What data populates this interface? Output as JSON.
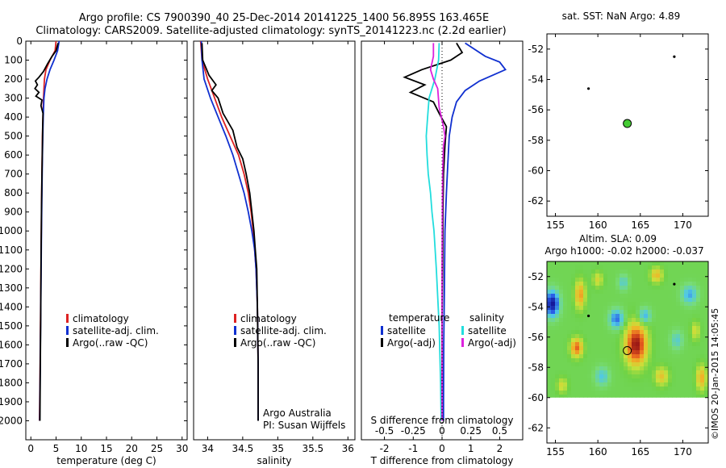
{
  "header": {
    "line1": "Argo profile: CS 7900390_40 25-Dec-2014 20141225_1400 56.895S 163.465E",
    "line2": "Climatology: CARS2009. Satellite-adjusted climatology: synTS_20141223.nc (2.2d earlier)"
  },
  "credits": {
    "org": "Argo Australia",
    "pi": "PI: Susan Wijffels",
    "stamp": "©IMOS 20-Jan-2015 14:05:45"
  },
  "colors": {
    "climatology": "#dd2222",
    "satellite": "#1030d0",
    "argo": "#000000",
    "sal_satellite": "#22dddd",
    "sal_argo": "#dd22dd",
    "float_marker": "#44cc33"
  },
  "chart_data": [
    {
      "type": "line",
      "id": "temperature",
      "xlabel": "temperature (deg C)",
      "ylabel": "",
      "xlim": [
        -1,
        31
      ],
      "ylim": [
        2100,
        0
      ],
      "xticks": [
        0,
        5,
        10,
        15,
        20,
        25,
        30
      ],
      "yticks": [
        0,
        100,
        200,
        300,
        400,
        500,
        600,
        700,
        800,
        900,
        1000,
        1100,
        1200,
        1300,
        1400,
        1500,
        1600,
        1700,
        1800,
        1900,
        2000
      ],
      "legend": [
        "climatology",
        "satellite-adj. clim.",
        "Argo(..raw -QC)"
      ],
      "series": [
        {
          "name": "climatology",
          "color": "#dd2222",
          "points": [
            [
              5.0,
              0
            ],
            [
              4.8,
              50
            ],
            [
              3.8,
              100
            ],
            [
              3.0,
              150
            ],
            [
              2.7,
              200
            ],
            [
              2.5,
              300
            ],
            [
              2.4,
              400
            ],
            [
              2.3,
              500
            ],
            [
              2.2,
              700
            ],
            [
              2.1,
              900
            ],
            [
              2.0,
              1200
            ],
            [
              1.9,
              1500
            ],
            [
              1.8,
              1800
            ],
            [
              1.7,
              2000
            ]
          ]
        },
        {
          "name": "satellite-adj. clim.",
          "color": "#1030d0",
          "points": [
            [
              5.6,
              0
            ],
            [
              5.3,
              50
            ],
            [
              4.6,
              100
            ],
            [
              3.8,
              150
            ],
            [
              3.2,
              200
            ],
            [
              2.8,
              250
            ],
            [
              2.6,
              300
            ],
            [
              2.45,
              400
            ],
            [
              2.3,
              600
            ],
            [
              2.2,
              800
            ],
            [
              2.1,
              1000
            ],
            [
              2.0,
              1300
            ],
            [
              1.9,
              1600
            ],
            [
              1.8,
              1900
            ],
            [
              1.75,
              2000
            ]
          ]
        },
        {
          "name": "Argo(..raw -QC)",
          "color": "#000000",
          "points": [
            [
              5.4,
              10
            ],
            [
              5.0,
              50
            ],
            [
              4.2,
              80
            ],
            [
              3.3,
              120
            ],
            [
              2.5,
              160
            ],
            [
              1.6,
              190
            ],
            [
              0.9,
              210
            ],
            [
              1.3,
              230
            ],
            [
              0.8,
              250
            ],
            [
              1.6,
              270
            ],
            [
              1.0,
              290
            ],
            [
              2.2,
              310
            ],
            [
              2.0,
              340
            ],
            [
              2.4,
              380
            ],
            [
              2.35,
              450
            ],
            [
              2.3,
              550
            ],
            [
              2.2,
              700
            ],
            [
              2.1,
              900
            ],
            [
              2.0,
              1200
            ],
            [
              1.95,
              1500
            ],
            [
              1.85,
              1800
            ],
            [
              1.8,
              2000
            ]
          ]
        }
      ]
    },
    {
      "type": "line",
      "id": "salinity",
      "xlabel": "salinity",
      "ylabel": "",
      "xlim": [
        33.8,
        36.1
      ],
      "ylim": [
        2100,
        0
      ],
      "xticks": [
        34,
        34.5,
        35,
        35.5,
        36
      ],
      "xticklabels": [
        "34",
        "34.5",
        "35",
        "35.5",
        "36"
      ],
      "legend": [
        "climatology",
        "satellite-adj. clim.",
        "Argo(..raw -QC)"
      ],
      "series": [
        {
          "name": "climatology",
          "color": "#dd2222",
          "points": [
            [
              33.9,
              0
            ],
            [
              33.92,
              100
            ],
            [
              34.0,
              200
            ],
            [
              34.1,
              300
            ],
            [
              34.2,
              400
            ],
            [
              34.32,
              500
            ],
            [
              34.44,
              600
            ],
            [
              34.52,
              700
            ],
            [
              34.58,
              800
            ],
            [
              34.62,
              900
            ],
            [
              34.65,
              1000
            ],
            [
              34.67,
              1100
            ],
            [
              34.69,
              1200
            ],
            [
              34.71,
              1400
            ],
            [
              34.72,
              1700
            ],
            [
              34.72,
              2000
            ]
          ]
        },
        {
          "name": "satellite-adj. clim.",
          "color": "#1030d0",
          "points": [
            [
              33.91,
              0
            ],
            [
              33.92,
              100
            ],
            [
              33.95,
              200
            ],
            [
              34.04,
              300
            ],
            [
              34.15,
              400
            ],
            [
              34.26,
              500
            ],
            [
              34.36,
              600
            ],
            [
              34.44,
              700
            ],
            [
              34.52,
              800
            ],
            [
              34.58,
              900
            ],
            [
              34.63,
              1000
            ],
            [
              34.67,
              1100
            ],
            [
              34.69,
              1200
            ],
            [
              34.71,
              1400
            ],
            [
              34.72,
              1700
            ],
            [
              34.72,
              2000
            ]
          ]
        },
        {
          "name": "Argo(..raw -QC)",
          "color": "#000000",
          "points": [
            [
              33.92,
              10
            ],
            [
              33.93,
              100
            ],
            [
              34.02,
              180
            ],
            [
              34.12,
              230
            ],
            [
              34.06,
              260
            ],
            [
              34.15,
              300
            ],
            [
              34.22,
              380
            ],
            [
              34.36,
              470
            ],
            [
              34.42,
              560
            ],
            [
              34.5,
              620
            ],
            [
              34.55,
              700
            ],
            [
              34.6,
              800
            ],
            [
              34.63,
              900
            ],
            [
              34.66,
              1000
            ],
            [
              34.68,
              1100
            ],
            [
              34.7,
              1200
            ],
            [
              34.71,
              1400
            ],
            [
              34.72,
              1700
            ],
            [
              34.72,
              2000
            ]
          ]
        }
      ]
    },
    {
      "type": "line",
      "id": "difference",
      "xlabel": "T difference from climatology",
      "x2label": "S difference from climatology",
      "ylabel": "",
      "xlim": [
        -2.8,
        2.8
      ],
      "ylim": [
        2100,
        0
      ],
      "xticks": [
        -2,
        -1,
        0,
        1,
        2
      ],
      "x2ticks": [
        -0.5,
        -0.25,
        0,
        0.25,
        0.5
      ],
      "x2ticklabels": [
        "-0.5",
        "-0.25",
        "0",
        "0.25",
        "0.5"
      ],
      "legend_temperature": {
        "title": "temperature",
        "items": [
          "satellite",
          "Argo(-adj)"
        ]
      },
      "legend_salinity": {
        "title": "salinity",
        "items": [
          "satellite",
          "Argo(-adj)"
        ]
      },
      "series": [
        {
          "name": "T satellite",
          "color": "#1030d0",
          "points": [
            [
              0.8,
              10
            ],
            [
              1.5,
              80
            ],
            [
              2.0,
              110
            ],
            [
              2.2,
              150
            ],
            [
              1.3,
              210
            ],
            [
              0.8,
              260
            ],
            [
              0.5,
              320
            ],
            [
              0.35,
              400
            ],
            [
              0.25,
              500
            ],
            [
              0.2,
              650
            ],
            [
              0.15,
              800
            ],
            [
              0.1,
              1000
            ],
            [
              0.08,
              1300
            ],
            [
              0.06,
              1600
            ],
            [
              0.05,
              1900
            ],
            [
              0.05,
              2000
            ]
          ]
        },
        {
          "name": "T Argo(-adj)",
          "color": "#000000",
          "points": [
            [
              0.5,
              10
            ],
            [
              0.7,
              60
            ],
            [
              0.3,
              100
            ],
            [
              -0.7,
              150
            ],
            [
              -1.3,
              190
            ],
            [
              -0.6,
              230
            ],
            [
              -1.1,
              270
            ],
            [
              -0.3,
              320
            ],
            [
              -0.1,
              380
            ],
            [
              0.15,
              450
            ],
            [
              0.1,
              550
            ],
            [
              0.05,
              700
            ],
            [
              0.03,
              900
            ],
            [
              0.02,
              1200
            ],
            [
              0.0,
              1500
            ],
            [
              0.0,
              1800
            ],
            [
              0.0,
              2000
            ]
          ]
        },
        {
          "name": "S satellite",
          "color": "#22dddd",
          "points": [
            [
              -0.1,
              10
            ],
            [
              -0.12,
              100
            ],
            [
              -0.25,
              200
            ],
            [
              -0.45,
              300
            ],
            [
              -0.5,
              400
            ],
            [
              -0.55,
              500
            ],
            [
              -0.52,
              600
            ],
            [
              -0.48,
              700
            ],
            [
              -0.4,
              800
            ],
            [
              -0.35,
              900
            ],
            [
              -0.28,
              1000
            ],
            [
              -0.2,
              1200
            ],
            [
              -0.1,
              1500
            ],
            [
              -0.05,
              1800
            ],
            [
              -0.03,
              2000
            ]
          ]
        },
        {
          "name": "S Argo(-adj)",
          "color": "#dd22dd",
          "points": [
            [
              -0.3,
              10
            ],
            [
              -0.3,
              80
            ],
            [
              -0.4,
              150
            ],
            [
              -0.3,
              200
            ],
            [
              -0.15,
              250
            ],
            [
              -0.1,
              350
            ],
            [
              0.05,
              450
            ],
            [
              0.1,
              500
            ],
            [
              0.05,
              550
            ],
            [
              0.02,
              700
            ],
            [
              0.01,
              900
            ],
            [
              0.0,
              1200
            ],
            [
              0.0,
              1500
            ],
            [
              0.0,
              2000
            ]
          ]
        }
      ]
    },
    {
      "type": "scatter",
      "id": "sst-map",
      "title": "sat. SST: NaN Argo: 4.89",
      "xlim": [
        154,
        173
      ],
      "ylim": [
        -63,
        -51
      ],
      "xticks": [
        155,
        160,
        165,
        170
      ],
      "yticks": [
        -52,
        -54,
        -56,
        -58,
        -60,
        -62
      ],
      "points": [
        [
          169.0,
          -52.5
        ],
        [
          158.9,
          -54.6
        ]
      ],
      "float": [
        163.465,
        -56.895
      ]
    },
    {
      "type": "heatmap",
      "id": "sla-map",
      "title_line1": "Altim. SLA: 0.09",
      "title_line2": "Argo h1000: -0.02 h2000: -0.037",
      "xlim": [
        154,
        173
      ],
      "ylim": [
        -63,
        -51
      ],
      "xticks": [
        155,
        160,
        165,
        170
      ],
      "yticks": [
        -52,
        -54,
        -56,
        -58,
        -60,
        -62
      ],
      "data_lat_range": [
        -60,
        -51
      ],
      "points": [
        [
          169.0,
          -52.5
        ],
        [
          158.9,
          -54.6
        ]
      ],
      "float": [
        163.465,
        -56.895
      ],
      "blobs": [
        {
          "lon": 164.5,
          "lat": -56.5,
          "amp": 1.0,
          "sx": 1.2,
          "sy": 1.3
        },
        {
          "lon": 157.5,
          "lat": -56.7,
          "amp": 0.7,
          "sx": 0.7,
          "sy": 0.6
        },
        {
          "lon": 154.6,
          "lat": -53.8,
          "amp": -1.0,
          "sx": 0.8,
          "sy": 0.8
        },
        {
          "lon": 157.9,
          "lat": -53.2,
          "amp": 0.55,
          "sx": 0.6,
          "sy": 0.9
        },
        {
          "lon": 162.2,
          "lat": -54.8,
          "amp": -0.6,
          "sx": 0.8,
          "sy": 0.6
        },
        {
          "lon": 165.5,
          "lat": -54.6,
          "amp": -0.45,
          "sx": 0.7,
          "sy": 0.5
        },
        {
          "lon": 166.9,
          "lat": -51.9,
          "amp": 0.45,
          "sx": 0.7,
          "sy": 0.5
        },
        {
          "lon": 170.8,
          "lat": -53.2,
          "amp": -0.45,
          "sx": 0.9,
          "sy": 0.6
        },
        {
          "lon": 172.2,
          "lat": -58.7,
          "amp": 0.5,
          "sx": 0.6,
          "sy": 0.8
        },
        {
          "lon": 167.5,
          "lat": -58.6,
          "amp": 0.4,
          "sx": 0.8,
          "sy": 0.6
        },
        {
          "lon": 160.5,
          "lat": -58.6,
          "amp": -0.35,
          "sx": 0.8,
          "sy": 0.6
        },
        {
          "lon": 155.8,
          "lat": -59.2,
          "amp": 0.3,
          "sx": 0.6,
          "sy": 0.5
        },
        {
          "lon": 169.3,
          "lat": -56.2,
          "amp": -0.3,
          "sx": 0.7,
          "sy": 0.6
        },
        {
          "lon": 160.0,
          "lat": -52.2,
          "amp": 0.3,
          "sx": 0.6,
          "sy": 0.5
        },
        {
          "lon": 163.0,
          "lat": -52.4,
          "amp": -0.3,
          "sx": 0.6,
          "sy": 0.5
        },
        {
          "lon": 171.5,
          "lat": -55.6,
          "amp": 0.3,
          "sx": 0.5,
          "sy": 0.6
        }
      ]
    }
  ]
}
